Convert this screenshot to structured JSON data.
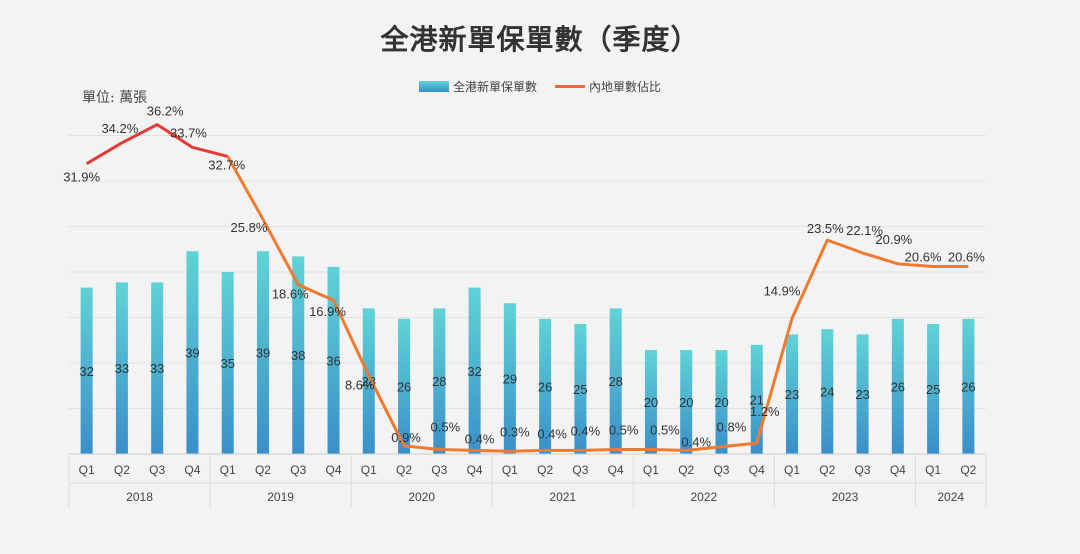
{
  "title": "全港新單保單數（季度）",
  "unit_label": "單位:  萬張",
  "legend": {
    "bar": "全港新單保單數",
    "line": "內地單數佔比"
  },
  "colors": {
    "bar_top": "#5fd3d6",
    "bar_bottom": "#3a8fc9",
    "line_red": "#e53935",
    "line_orange": "#ef7a30"
  },
  "chart_data": {
    "type": "bar+line",
    "title": "全港新單保單數（季度）",
    "quarters": [
      "Q1",
      "Q2",
      "Q3",
      "Q4",
      "Q1",
      "Q2",
      "Q3",
      "Q4",
      "Q1",
      "Q2",
      "Q3",
      "Q4",
      "Q1",
      "Q2",
      "Q3",
      "Q4",
      "Q1",
      "Q2",
      "Q3",
      "Q4",
      "Q1",
      "Q2",
      "Q3",
      "Q4",
      "Q1",
      "Q2"
    ],
    "years": [
      {
        "label": "2018",
        "count": 4
      },
      {
        "label": "2019",
        "count": 4
      },
      {
        "label": "2020",
        "count": 4
      },
      {
        "label": "2021",
        "count": 4
      },
      {
        "label": "2022",
        "count": 4
      },
      {
        "label": "2023",
        "count": 4
      },
      {
        "label": "2024",
        "count": 2
      }
    ],
    "series": [
      {
        "name": "全港新單保單數",
        "kind": "bar",
        "axis": "left",
        "unit": "萬張",
        "values": [
          32,
          33,
          33,
          39,
          35,
          39,
          38,
          36,
          28,
          26,
          28,
          32,
          29,
          26,
          25,
          28,
          20,
          20,
          20,
          21,
          23,
          24,
          23,
          26,
          25,
          26
        ],
        "labels": [
          "32",
          "33",
          "33",
          "39",
          "35",
          "39",
          "38",
          "36",
          "28",
          "26",
          "28",
          "32",
          "29",
          "26",
          "25",
          "28",
          "20",
          "20",
          "20",
          "21",
          "23",
          "24",
          "23",
          "26",
          "25",
          "26"
        ]
      },
      {
        "name": "內地單數佔比",
        "kind": "line",
        "axis": "right",
        "unit": "%",
        "values": [
          31.9,
          34.2,
          36.2,
          33.7,
          32.7,
          25.8,
          18.6,
          16.9,
          8.6,
          0.9,
          0.5,
          0.4,
          0.3,
          0.4,
          0.4,
          0.5,
          0.5,
          0.4,
          0.8,
          1.2,
          14.9,
          23.5,
          22.1,
          20.9,
          20.6,
          20.6
        ],
        "labels": [
          "31.9%",
          "34.2%",
          "36.2%",
          "33.7%",
          "32.7%",
          "25.8%",
          "18.6%",
          "16.9%",
          "8.6%",
          "0.9%",
          "0.5%",
          "0.4%",
          "0.3%",
          "0.4%",
          "0.4%",
          "0.5%",
          "0.5%",
          "0.4%",
          "0.8%",
          "1.2%",
          "14.9%",
          "23.5%",
          "22.1%",
          "20.9%",
          "20.6%",
          "20.6%"
        ]
      }
    ],
    "y_left_range": [
      0,
      70
    ],
    "y_right_range": [
      0,
      40
    ],
    "grid": true,
    "legend_position": "top-center"
  }
}
